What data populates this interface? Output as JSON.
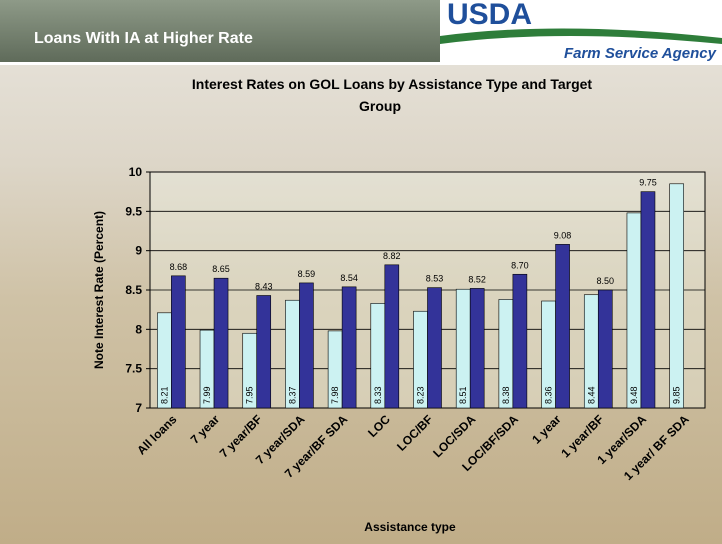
{
  "header": {
    "title": "Loans With IA at Higher Rate",
    "logo": "USDA",
    "agency": "Farm Service Agency"
  },
  "chart_data": {
    "type": "bar",
    "title": "Interest Rates on GOL Loans by Assistance Type and Target Group",
    "x_label": "Assistance type",
    "y_label": "Note Interest Rate (Percent)",
    "categories": [
      "All loans",
      "7 year",
      "7 year/BF",
      "7 year/SDA",
      "7 year/BF SDA",
      "LOC",
      "LOC/BF",
      "LOC/SDA",
      "LOC/BF/SDA",
      "1 year",
      "1 year/BF",
      "1 year/SDA",
      "1 year/ BF SDA"
    ],
    "series": [
      {
        "color": "#ccf2f2",
        "values": [
          8.21,
          7.99,
          7.95,
          8.37,
          7.98,
          8.33,
          8.23,
          8.51,
          8.38,
          8.36,
          8.44,
          9.48,
          9.85
        ]
      },
      {
        "color": "#333399",
        "values": [
          8.68,
          8.65,
          8.43,
          8.59,
          8.54,
          8.82,
          8.53,
          8.52,
          8.7,
          9.08,
          8.5,
          9.75,
          null
        ],
        "value_labels": [
          "8.68",
          "8.65",
          "8.43",
          "8.59",
          "8.54",
          "8.82",
          "8.53",
          "8.52",
          "8.70",
          "9.08",
          "8.50",
          "9.75",
          null
        ]
      }
    ],
    "ylim": [
      7,
      10
    ],
    "yticks": [
      7,
      7.5,
      8,
      8.5,
      9,
      9.5,
      10
    ],
    "grid": true
  }
}
